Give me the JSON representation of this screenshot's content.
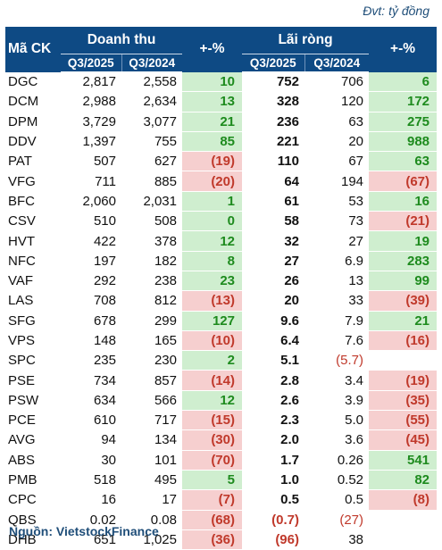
{
  "unit_label": "Đvt: tỷ đồng",
  "source": "Nguồn: VietstockFinance",
  "headers": {
    "ticker": "Mã CK",
    "revenue": "Doanh thu",
    "change": "+-%",
    "profit": "Lãi ròng",
    "q_current": "Q3/2025",
    "q_prior": "Q3/2024"
  },
  "rows": [
    {
      "ticker": "DGC",
      "rev_cur": "2,817",
      "rev_prev": "2,558",
      "rev_pct": "10",
      "rev_sign": "pos",
      "np_cur": "752",
      "np_prev": "706",
      "np_pct": "6",
      "np_sign": "pos"
    },
    {
      "ticker": "DCM",
      "rev_cur": "2,988",
      "rev_prev": "2,634",
      "rev_pct": "13",
      "rev_sign": "pos",
      "np_cur": "328",
      "np_prev": "120",
      "np_pct": "172",
      "np_sign": "pos"
    },
    {
      "ticker": "DPM",
      "rev_cur": "3,729",
      "rev_prev": "3,077",
      "rev_pct": "21",
      "rev_sign": "pos",
      "np_cur": "236",
      "np_prev": "63",
      "np_pct": "275",
      "np_sign": "pos"
    },
    {
      "ticker": "DDV",
      "rev_cur": "1,397",
      "rev_prev": "755",
      "rev_pct": "85",
      "rev_sign": "pos",
      "np_cur": "221",
      "np_prev": "20",
      "np_pct": "988",
      "np_sign": "pos"
    },
    {
      "ticker": "PAT",
      "rev_cur": "507",
      "rev_prev": "627",
      "rev_pct": "(19)",
      "rev_sign": "neg",
      "np_cur": "110",
      "np_prev": "67",
      "np_pct": "63",
      "np_sign": "pos"
    },
    {
      "ticker": "VFG",
      "rev_cur": "711",
      "rev_prev": "885",
      "rev_pct": "(20)",
      "rev_sign": "neg",
      "np_cur": "64",
      "np_prev": "194",
      "np_pct": "(67)",
      "np_sign": "neg"
    },
    {
      "ticker": "BFC",
      "rev_cur": "2,060",
      "rev_prev": "2,031",
      "rev_pct": "1",
      "rev_sign": "pos",
      "np_cur": "61",
      "np_prev": "53",
      "np_pct": "16",
      "np_sign": "pos"
    },
    {
      "ticker": "CSV",
      "rev_cur": "510",
      "rev_prev": "508",
      "rev_pct": "0",
      "rev_sign": "pos",
      "np_cur": "58",
      "np_prev": "73",
      "np_pct": "(21)",
      "np_sign": "neg"
    },
    {
      "ticker": "HVT",
      "rev_cur": "422",
      "rev_prev": "378",
      "rev_pct": "12",
      "rev_sign": "pos",
      "np_cur": "32",
      "np_prev": "27",
      "np_pct": "19",
      "np_sign": "pos"
    },
    {
      "ticker": "NFC",
      "rev_cur": "197",
      "rev_prev": "182",
      "rev_pct": "8",
      "rev_sign": "pos",
      "np_cur": "27",
      "np_prev": "6.9",
      "np_pct": "283",
      "np_sign": "pos"
    },
    {
      "ticker": "VAF",
      "rev_cur": "292",
      "rev_prev": "238",
      "rev_pct": "23",
      "rev_sign": "pos",
      "np_cur": "26",
      "np_prev": "13",
      "np_pct": "99",
      "np_sign": "pos"
    },
    {
      "ticker": "LAS",
      "rev_cur": "708",
      "rev_prev": "812",
      "rev_pct": "(13)",
      "rev_sign": "neg",
      "np_cur": "20",
      "np_prev": "33",
      "np_pct": "(39)",
      "np_sign": "neg"
    },
    {
      "ticker": "SFG",
      "rev_cur": "678",
      "rev_prev": "299",
      "rev_pct": "127",
      "rev_sign": "pos",
      "np_cur": "9.6",
      "np_prev": "7.9",
      "np_pct": "21",
      "np_sign": "pos"
    },
    {
      "ticker": "VPS",
      "rev_cur": "148",
      "rev_prev": "165",
      "rev_pct": "(10)",
      "rev_sign": "neg",
      "np_cur": "6.4",
      "np_prev": "7.6",
      "np_pct": "(16)",
      "np_sign": "neg"
    },
    {
      "ticker": "SPC",
      "rev_cur": "235",
      "rev_prev": "230",
      "rev_pct": "2",
      "rev_sign": "pos",
      "np_cur": "5.1",
      "np_prev": "(5.7)",
      "np_prev_red": true,
      "np_pct": "",
      "np_sign": "none"
    },
    {
      "ticker": "PSE",
      "rev_cur": "734",
      "rev_prev": "857",
      "rev_pct": "(14)",
      "rev_sign": "neg",
      "np_cur": "2.8",
      "np_prev": "3.4",
      "np_pct": "(19)",
      "np_sign": "neg"
    },
    {
      "ticker": "PSW",
      "rev_cur": "634",
      "rev_prev": "566",
      "rev_pct": "12",
      "rev_sign": "pos",
      "np_cur": "2.6",
      "np_prev": "3.9",
      "np_pct": "(35)",
      "np_sign": "neg"
    },
    {
      "ticker": "PCE",
      "rev_cur": "610",
      "rev_prev": "717",
      "rev_pct": "(15)",
      "rev_sign": "neg",
      "np_cur": "2.3",
      "np_prev": "5.0",
      "np_pct": "(55)",
      "np_sign": "neg"
    },
    {
      "ticker": "AVG",
      "rev_cur": "94",
      "rev_prev": "134",
      "rev_pct": "(30)",
      "rev_sign": "neg",
      "np_cur": "2.0",
      "np_prev": "3.6",
      "np_pct": "(45)",
      "np_sign": "neg"
    },
    {
      "ticker": "ABS",
      "rev_cur": "30",
      "rev_prev": "101",
      "rev_pct": "(70)",
      "rev_sign": "neg",
      "np_cur": "1.7",
      "np_prev": "0.26",
      "np_pct": "541",
      "np_sign": "pos"
    },
    {
      "ticker": "PMB",
      "rev_cur": "518",
      "rev_prev": "495",
      "rev_pct": "5",
      "rev_sign": "pos",
      "np_cur": "1.0",
      "np_prev": "0.52",
      "np_pct": "82",
      "np_sign": "pos"
    },
    {
      "ticker": "CPC",
      "rev_cur": "16",
      "rev_prev": "17",
      "rev_pct": "(7)",
      "rev_sign": "neg",
      "np_cur": "0.5",
      "np_prev": "0.5",
      "np_pct": "(8)",
      "np_sign": "neg"
    },
    {
      "ticker": "QBS",
      "rev_cur": "0.02",
      "rev_prev": "0.08",
      "rev_pct": "(68)",
      "rev_sign": "neg",
      "np_cur": "(0.7)",
      "np_cur_red": true,
      "np_prev": "(27)",
      "np_prev_red": true,
      "np_pct": "",
      "np_sign": "none"
    },
    {
      "ticker": "DHB",
      "rev_cur": "651",
      "rev_prev": "1,025",
      "rev_pct": "(36)",
      "rev_sign": "neg",
      "np_cur": "(96)",
      "np_cur_red": true,
      "np_prev": "38",
      "np_pct": "",
      "np_sign": "none"
    }
  ]
}
